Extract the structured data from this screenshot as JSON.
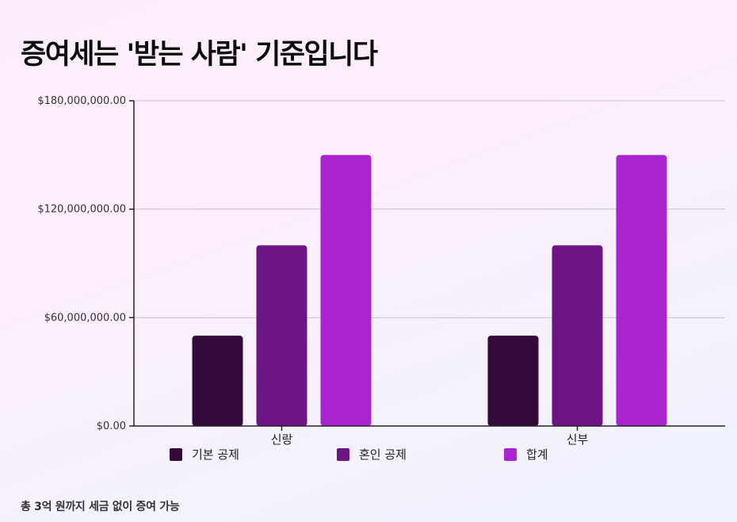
{
  "title": "증여세는 '받는 사람' 기준입니다",
  "footnote": "총 3억 원까지 세금 없이 증여 가능",
  "chart_data": {
    "type": "bar",
    "categories": [
      "신랑",
      "신부"
    ],
    "series": [
      {
        "name": "기본 공제",
        "values": [
          50000000,
          50000000
        ],
        "color": "#330a3a"
      },
      {
        "name": "혼인 공제",
        "values": [
          100000000,
          100000000
        ],
        "color": "#6e1585"
      },
      {
        "name": "합계",
        "values": [
          150000000,
          150000000
        ],
        "color": "#aa24d0"
      }
    ],
    "ylim": [
      0,
      180000000
    ],
    "yticks": [
      0,
      60000000,
      120000000,
      180000000
    ],
    "ytick_labels": [
      "$0.00",
      "$60,000,000.00",
      "$120,000,000.00",
      "$180,000,000.00"
    ],
    "grid": true,
    "legend": "bottom",
    "xlabel": "",
    "ylabel": ""
  }
}
